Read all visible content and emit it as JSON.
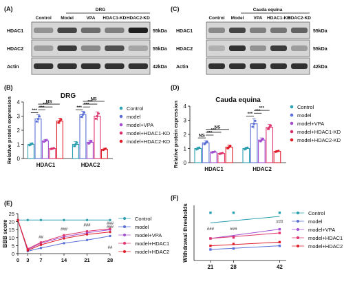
{
  "figure": {
    "panels": {
      "A": "(A)",
      "B": "(B)",
      "C": "(C)",
      "D": "(D)",
      "E": "(E)",
      "F": "(F)"
    }
  },
  "blots": {
    "A": {
      "group_label": "DRG",
      "lanes": [
        "Control",
        "Model",
        "VPA",
        "HDAC1-KD",
        "HDAC2-KD"
      ],
      "rows": [
        {
          "protein": "HDAC1",
          "kda": "55kDa",
          "intensity": [
            0.35,
            0.75,
            0.55,
            0.45,
            0.95
          ]
        },
        {
          "protein": "HDAC2",
          "kda": "55kDa",
          "intensity": [
            0.3,
            0.8,
            0.4,
            0.7,
            0.25
          ]
        },
        {
          "protein": "Actin",
          "kda": "42kDa",
          "intensity": [
            0.85,
            0.85,
            0.85,
            0.85,
            0.85
          ]
        }
      ]
    },
    "C": {
      "group_label": "Cauda equina",
      "lanes": [
        "Control",
        "Model",
        "VPA",
        "HDAC1-KD",
        "HDAC2-KD"
      ],
      "rows": [
        {
          "protein": "HDAC1",
          "kda": "55kDa",
          "intensity": [
            0.4,
            0.75,
            0.45,
            0.5,
            0.6
          ]
        },
        {
          "protein": "HDAC2",
          "kda": "55kDa",
          "intensity": [
            0.2,
            0.85,
            0.35,
            0.8,
            0.3
          ]
        },
        {
          "protein": "Actin",
          "kda": "42kDa",
          "intensity": [
            0.85,
            0.85,
            0.85,
            0.85,
            0.85
          ]
        }
      ]
    }
  },
  "colors": {
    "Control": "#2a9fae",
    "model": "#5b6fd6",
    "model+VPA": "#a24fd0",
    "model+HDAC1-KD": "#e0316b",
    "model+HDAC2-KD": "#e11d2a",
    "model+HDAC1": "#e0316b",
    "model+HDAC2": "#e11d2a"
  },
  "chart_data": [
    {
      "panel": "B",
      "type": "bar",
      "title": "DRG",
      "ylabel": "Relative protein expression",
      "ylim": [
        0,
        4
      ],
      "yticks": [
        "0",
        "1",
        "2",
        "3",
        "4"
      ],
      "categories": [
        "HDAC1",
        "HDAC2"
      ],
      "series": [
        {
          "name": "Control",
          "values": [
            1.0,
            1.0
          ],
          "err": [
            0.1,
            0.2
          ]
        },
        {
          "name": "model",
          "values": [
            2.8,
            3.1
          ],
          "err": [
            0.3,
            0.25
          ]
        },
        {
          "name": "model+VPA",
          "values": [
            1.25,
            1.15
          ],
          "err": [
            0.1,
            0.15
          ]
        },
        {
          "name": "model+HDAC1-KD",
          "values": [
            0.7,
            3.0
          ],
          "err": [
            0.05,
            0.3
          ]
        },
        {
          "name": "model+HDAC2-KD",
          "values": [
            2.65,
            0.65
          ],
          "err": [
            0.2,
            0.08
          ]
        }
      ],
      "annotations": [
        "***",
        "***",
        "***",
        "NS",
        "***",
        "***",
        "***",
        "NS"
      ]
    },
    {
      "panel": "D",
      "type": "bar",
      "title": "Cauda equina",
      "ylabel": "Relative protein expression",
      "ylim": [
        0,
        4
      ],
      "yticks": [
        "0",
        "1",
        "2",
        "3",
        "4"
      ],
      "categories": [
        "HDAC1",
        "HDAC2"
      ],
      "series": [
        {
          "name": "Control",
          "values": [
            1.0,
            1.0
          ],
          "err": [
            0.1,
            0.1
          ]
        },
        {
          "name": "model",
          "values": [
            1.4,
            2.75
          ],
          "err": [
            0.15,
            0.35
          ]
        },
        {
          "name": "model+VPA",
          "values": [
            0.75,
            1.6
          ],
          "err": [
            0.05,
            0.15
          ]
        },
        {
          "name": "model+HDAC1-KD",
          "values": [
            0.65,
            2.5
          ],
          "err": [
            0.05,
            0.2
          ]
        },
        {
          "name": "model+HDAC2-KD",
          "values": [
            1.1,
            0.8
          ],
          "err": [
            0.15,
            0.05
          ]
        }
      ],
      "annotations": [
        "NS",
        "***",
        "***",
        "NS",
        "***",
        "***",
        "***"
      ]
    },
    {
      "panel": "E",
      "type": "line",
      "ylabel": "BBB score",
      "x": [
        0,
        3,
        7,
        14,
        21,
        28
      ],
      "xticks": [
        "0",
        "3",
        "7",
        "14",
        "21",
        "28"
      ],
      "ylim": [
        0,
        25
      ],
      "yticks": [
        "0",
        "5",
        "10",
        "15",
        "20",
        "25"
      ],
      "series": [
        {
          "name": "Control",
          "values": [
            21,
            21,
            21,
            21,
            21,
            21
          ]
        },
        {
          "name": "model",
          "values": [
            21,
            1.5,
            3.5,
            6.5,
            8.5,
            11
          ]
        },
        {
          "name": "model+VPA",
          "values": [
            21,
            2.5,
            6.5,
            10.5,
            13,
            15
          ]
        },
        {
          "name": "model+HDAC1",
          "values": [
            21,
            3,
            7,
            11.5,
            14,
            15.5
          ]
        },
        {
          "name": "model+HDAC2",
          "values": [
            21,
            2,
            5.5,
            9.5,
            12,
            13.5
          ]
        }
      ],
      "annotations": [
        "##",
        "###",
        "###",
        "###",
        "###",
        "##"
      ]
    },
    {
      "panel": "F",
      "type": "scatter",
      "ylabel": "Withdrawal thresholds",
      "x": [
        21,
        28,
        42
      ],
      "xticks": [
        "21",
        "28",
        "42"
      ],
      "ylim": [
        0,
        30
      ],
      "series": [
        {
          "name": "Control",
          "values": [
            26,
            26,
            26
          ],
          "fit": [
            20.5,
            24
          ]
        },
        {
          "name": "model",
          "values": [
            6,
            6.5,
            8
          ],
          "fit": [
            6,
            8
          ]
        },
        {
          "name": "model+VPA",
          "values": [
            12,
            13,
            17
          ],
          "fit": [
            12,
            17
          ]
        },
        {
          "name": "model+HDAC1",
          "values": [
            12,
            12.5,
            15
          ],
          "fit": [
            12,
            15
          ]
        },
        {
          "name": "model+HDAC2",
          "values": [
            8,
            9,
            10
          ],
          "fit": [
            8,
            10
          ]
        }
      ],
      "annotations": [
        "###",
        "###",
        "###"
      ]
    }
  ]
}
